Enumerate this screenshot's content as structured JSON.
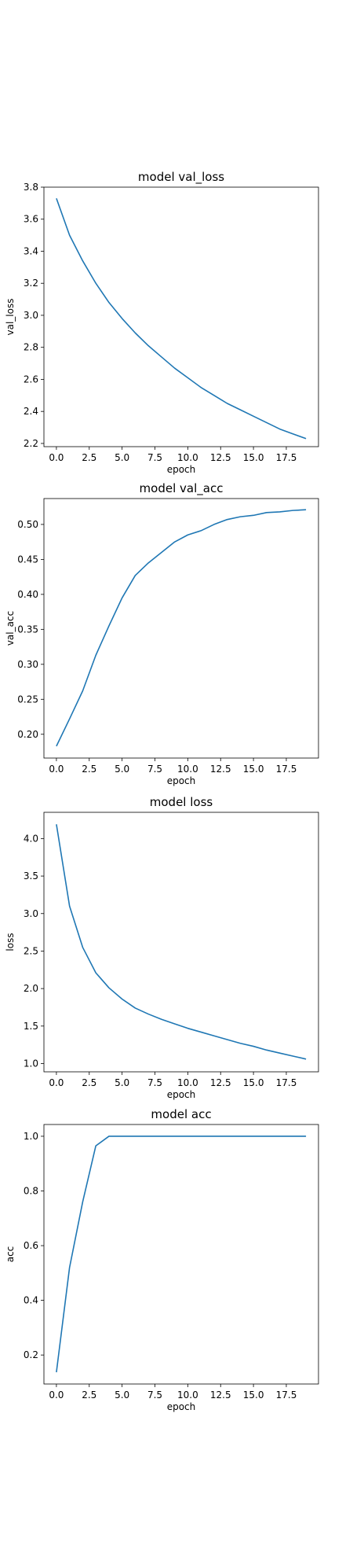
{
  "chart_data": [
    {
      "type": "line",
      "title": "model val_loss",
      "xlabel": "epoch",
      "ylabel": "val_loss",
      "xlim": [
        -0.95,
        19.95
      ],
      "ylim": [
        2.18,
        3.8
      ],
      "xticks": [
        0,
        2.5,
        5,
        7.5,
        10,
        12.5,
        15,
        17.5
      ],
      "xtick_labels": [
        "0.0",
        "2.5",
        "5.0",
        "7.5",
        "10.0",
        "12.5",
        "15.0",
        "17.5"
      ],
      "yticks": [
        2.2,
        2.4,
        2.6,
        2.8,
        3.0,
        3.2,
        3.4,
        3.6,
        3.8
      ],
      "ytick_labels": [
        "2.2",
        "2.4",
        "2.6",
        "2.8",
        "3.0",
        "3.2",
        "3.4",
        "3.6",
        "3.8"
      ],
      "grid": false,
      "color": "#1f77b4",
      "x": [
        0,
        1,
        2,
        3,
        4,
        5,
        6,
        7,
        8,
        9,
        10,
        11,
        12,
        13,
        14,
        15,
        16,
        17,
        18,
        19
      ],
      "y": [
        3.73,
        3.5,
        3.34,
        3.2,
        3.08,
        2.98,
        2.89,
        2.81,
        2.74,
        2.67,
        2.61,
        2.55,
        2.5,
        2.45,
        2.41,
        2.37,
        2.33,
        2.29,
        2.26,
        2.23
      ]
    },
    {
      "type": "line",
      "title": "model val_acc",
      "xlabel": "epoch",
      "ylabel": "val_acc",
      "xlim": [
        -0.95,
        19.95
      ],
      "ylim": [
        0.166,
        0.537
      ],
      "xticks": [
        0,
        2.5,
        5,
        7.5,
        10,
        12.5,
        15,
        17.5
      ],
      "xtick_labels": [
        "0.0",
        "2.5",
        "5.0",
        "7.5",
        "10.0",
        "12.5",
        "15.0",
        "17.5"
      ],
      "yticks": [
        0.2,
        0.25,
        0.3,
        0.35,
        0.4,
        0.45,
        0.5
      ],
      "ytick_labels": [
        "0.20",
        "0.25",
        "0.30",
        "0.35",
        "0.40",
        "0.45",
        "0.50"
      ],
      "grid": false,
      "color": "#1f77b4",
      "x": [
        0,
        1,
        2,
        3,
        4,
        5,
        6,
        7,
        8,
        9,
        10,
        11,
        12,
        13,
        14,
        15,
        16,
        17,
        18,
        19
      ],
      "y": [
        0.183,
        0.222,
        0.262,
        0.313,
        0.355,
        0.395,
        0.427,
        0.445,
        0.46,
        0.475,
        0.485,
        0.491,
        0.5,
        0.507,
        0.511,
        0.513,
        0.517,
        0.518,
        0.52,
        0.521
      ]
    },
    {
      "type": "line",
      "title": "model loss",
      "xlabel": "epoch",
      "ylabel": "loss",
      "xlim": [
        -0.95,
        19.95
      ],
      "ylim": [
        0.89,
        4.35
      ],
      "xticks": [
        0,
        2.5,
        5,
        7.5,
        10,
        12.5,
        15,
        17.5
      ],
      "xtick_labels": [
        "0.0",
        "2.5",
        "5.0",
        "7.5",
        "10.0",
        "12.5",
        "15.0",
        "17.5"
      ],
      "yticks": [
        1.0,
        1.5,
        2.0,
        2.5,
        3.0,
        3.5,
        4.0
      ],
      "ytick_labels": [
        "1.0",
        "1.5",
        "2.0",
        "2.5",
        "3.0",
        "3.5",
        "4.0"
      ],
      "grid": false,
      "color": "#1f77b4",
      "x": [
        0,
        1,
        2,
        3,
        4,
        5,
        6,
        7,
        8,
        9,
        10,
        11,
        12,
        13,
        14,
        15,
        16,
        17,
        18,
        19
      ],
      "y": [
        4.19,
        3.1,
        2.55,
        2.21,
        2.01,
        1.86,
        1.74,
        1.66,
        1.59,
        1.53,
        1.47,
        1.42,
        1.37,
        1.32,
        1.27,
        1.23,
        1.18,
        1.14,
        1.1,
        1.06
      ]
    },
    {
      "type": "line",
      "title": "model acc",
      "xlabel": "epoch",
      "ylabel": "acc",
      "xlim": [
        -0.95,
        19.95
      ],
      "ylim": [
        0.094,
        1.043
      ],
      "xticks": [
        0,
        2.5,
        5,
        7.5,
        10,
        12.5,
        15,
        17.5
      ],
      "xtick_labels": [
        "0.0",
        "2.5",
        "5.0",
        "7.5",
        "10.0",
        "12.5",
        "15.0",
        "17.5"
      ],
      "yticks": [
        0.2,
        0.4,
        0.6,
        0.8,
        1.0
      ],
      "ytick_labels": [
        "0.2",
        "0.4",
        "0.6",
        "0.8",
        "1.0"
      ],
      "grid": false,
      "color": "#1f77b4",
      "x": [
        0,
        1,
        2,
        3,
        4,
        5,
        6,
        7,
        8,
        9,
        10,
        11,
        12,
        13,
        14,
        15,
        16,
        17,
        18,
        19
      ],
      "y": [
        0.137,
        0.52,
        0.76,
        0.965,
        1.0,
        1.0,
        1.0,
        1.0,
        1.0,
        1.0,
        1.0,
        1.0,
        1.0,
        1.0,
        1.0,
        1.0,
        1.0,
        1.0,
        1.0,
        1.0
      ]
    }
  ]
}
